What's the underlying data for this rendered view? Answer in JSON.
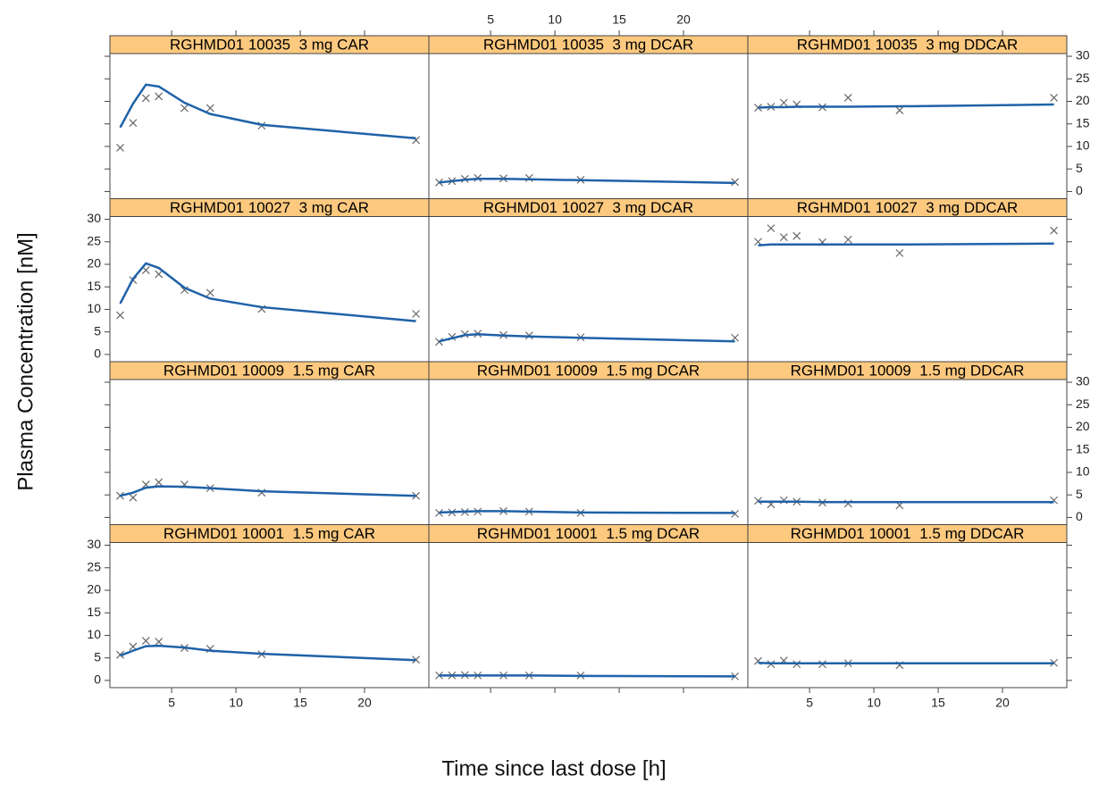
{
  "chart_data": {
    "type": "trellis",
    "x_label": "Time since last dose [h]",
    "y_label": "Plasma Concentration [nM]",
    "xlim": [
      0.2,
      25
    ],
    "xticks": [
      5,
      10,
      15,
      20
    ],
    "ylim": [
      -1.6,
      30.6
    ],
    "yticks": [
      0,
      5,
      10,
      15,
      20,
      25,
      30
    ],
    "strip_color": "#fdc97f",
    "x": [
      1,
      2,
      3,
      4,
      6,
      8,
      12,
      24
    ],
    "panels": [
      {
        "title": "RGHMD01 10035  3 mg CAR",
        "series": [
          {
            "style": "points",
            "color": "#666666",
            "values": [
              9.7,
              15.2,
              20.7,
              21.1,
              18.5,
              18.5,
              14.6,
              11.4
            ]
          },
          {
            "style": "line",
            "color": "#1f62a8",
            "values": [
              14.2,
              19.5,
              23.7,
              23.3,
              19.7,
              17.2,
              14.8,
              11.8
            ]
          }
        ]
      },
      {
        "title": "RGHMD01 10035  3 mg DCAR",
        "series": [
          {
            "style": "points",
            "color": "#666666",
            "values": [
              2.0,
              2.3,
              2.8,
              3.0,
              2.9,
              3.0,
              2.6,
              2.1
            ]
          },
          {
            "style": "line",
            "color": "#1f62a8",
            "values": [
              2.0,
              2.3,
              2.6,
              2.8,
              2.8,
              2.7,
              2.5,
              1.9
            ]
          }
        ]
      },
      {
        "title": "RGHMD01 10035  3 mg DDCAR",
        "series": [
          {
            "style": "points",
            "color": "#666666",
            "values": [
              18.6,
              18.8,
              19.7,
              19.3,
              18.7,
              20.8,
              18.0,
              20.8
            ]
          },
          {
            "style": "line",
            "color": "#1f62a8",
            "values": [
              18.6,
              18.7,
              18.7,
              18.8,
              18.8,
              18.8,
              18.9,
              19.3
            ]
          }
        ]
      },
      {
        "title": "RGHMD01 10027  3 mg CAR",
        "series": [
          {
            "style": "points",
            "color": "#666666",
            "values": [
              8.7,
              16.5,
              18.7,
              17.8,
              14.3,
              13.7,
              10.1,
              9.0
            ]
          },
          {
            "style": "line",
            "color": "#1f62a8",
            "values": [
              11.3,
              16.8,
              20.2,
              19.2,
              14.8,
              12.4,
              10.5,
              7.4
            ]
          }
        ]
      },
      {
        "title": "RGHMD01 10027  3 mg DCAR",
        "series": [
          {
            "style": "points",
            "color": "#666666",
            "values": [
              2.8,
              3.9,
              4.5,
              4.6,
              4.3,
              4.2,
              3.8,
              3.7
            ]
          },
          {
            "style": "line",
            "color": "#1f62a8",
            "values": [
              2.9,
              3.6,
              4.3,
              4.5,
              4.2,
              4.0,
              3.7,
              2.9
            ]
          }
        ]
      },
      {
        "title": "RGHMD01 10027  3 mg DDCAR",
        "series": [
          {
            "style": "points",
            "color": "#666666",
            "values": [
              25.0,
              28.0,
              26.0,
              26.3,
              24.9,
              25.5,
              22.5,
              27.5
            ]
          },
          {
            "style": "line",
            "color": "#1f62a8",
            "values": [
              24.2,
              24.4,
              24.4,
              24.4,
              24.4,
              24.4,
              24.4,
              24.6
            ]
          }
        ]
      },
      {
        "title": "RGHMD01 10009  1.5 mg CAR",
        "series": [
          {
            "style": "points",
            "color": "#666666",
            "values": [
              4.8,
              4.4,
              7.3,
              7.8,
              7.3,
              6.5,
              5.5,
              4.8
            ]
          },
          {
            "style": "line",
            "color": "#1f62a8",
            "values": [
              4.8,
              5.5,
              6.6,
              6.9,
              6.8,
              6.5,
              5.8,
              4.8
            ]
          }
        ]
      },
      {
        "title": "RGHMD01 10009  1.5 mg DCAR",
        "series": [
          {
            "style": "points",
            "color": "#666666",
            "values": [
              1.0,
              1.1,
              1.2,
              1.3,
              1.4,
              1.3,
              1.0,
              0.8
            ]
          },
          {
            "style": "line",
            "color": "#1f62a8",
            "values": [
              1.1,
              1.2,
              1.3,
              1.4,
              1.4,
              1.3,
              1.1,
              1.0
            ]
          }
        ]
      },
      {
        "title": "RGHMD01 10009  1.5 mg DDCAR",
        "series": [
          {
            "style": "points",
            "color": "#666666",
            "values": [
              3.7,
              2.9,
              3.8,
              3.5,
              3.3,
              3.1,
              2.7,
              3.8
            ]
          },
          {
            "style": "line",
            "color": "#1f62a8",
            "values": [
              3.5,
              3.5,
              3.5,
              3.5,
              3.4,
              3.4,
              3.4,
              3.4
            ]
          }
        ]
      },
      {
        "title": "RGHMD01 10001  1.5 mg CAR",
        "series": [
          {
            "style": "points",
            "color": "#666666",
            "values": [
              5.7,
              7.5,
              8.8,
              8.6,
              7.2,
              7.0,
              5.8,
              4.6
            ]
          },
          {
            "style": "line",
            "color": "#1f62a8",
            "values": [
              5.5,
              6.6,
              7.6,
              7.7,
              7.3,
              6.6,
              5.9,
              4.5
            ]
          }
        ]
      },
      {
        "title": "RGHMD01 10001  1.5 mg DCAR",
        "series": [
          {
            "style": "points",
            "color": "#666666",
            "values": [
              1.1,
              1.1,
              1.2,
              1.1,
              1.1,
              1.1,
              1.1,
              0.9
            ]
          },
          {
            "style": "line",
            "color": "#1f62a8",
            "values": [
              1.1,
              1.1,
              1.1,
              1.1,
              1.1,
              1.1,
              1.0,
              0.9
            ]
          }
        ]
      },
      {
        "title": "RGHMD01 10001  1.5 mg DDCAR",
        "series": [
          {
            "style": "points",
            "color": "#666666",
            "values": [
              4.3,
              3.6,
              4.4,
              3.6,
              3.6,
              3.8,
              3.4,
              3.9
            ]
          },
          {
            "style": "line",
            "color": "#1f62a8",
            "values": [
              3.9,
              3.8,
              3.8,
              3.8,
              3.8,
              3.8,
              3.8,
              3.8
            ]
          }
        ]
      }
    ]
  }
}
